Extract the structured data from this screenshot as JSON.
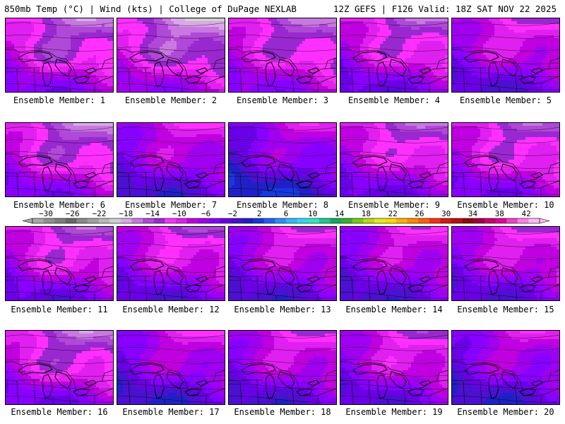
{
  "header": {
    "left_title": "850mb Temp (°C) | Wind (kts) | College of DuPage NEXLAB",
    "right_title": "12Z GEFS | F126 Valid: 18Z SAT NOV 22 2025"
  },
  "label_prefix": "Ensemble Member: ",
  "members": [
    {
      "number": 1,
      "label": "Ensemble Member: 1",
      "field": {
        "base": -3,
        "north": -9,
        "east": -2,
        "blob": -4
      }
    },
    {
      "number": 2,
      "label": "Ensemble Member: 2",
      "field": {
        "base": -4,
        "north": -10,
        "east": -3,
        "blob": -3
      }
    },
    {
      "number": 3,
      "label": "Ensemble Member: 3",
      "field": {
        "base": -3,
        "north": -7,
        "east": -4,
        "blob": -2
      }
    },
    {
      "number": 4,
      "label": "Ensemble Member: 4",
      "field": {
        "base": -1,
        "north": -9,
        "east": -3,
        "blob": -3
      }
    },
    {
      "number": 5,
      "label": "Ensemble Member: 5",
      "field": {
        "base": 0,
        "north": -7,
        "east": -2,
        "blob": -2
      }
    },
    {
      "number": 6,
      "label": "Ensemble Member: 6",
      "field": {
        "base": -2,
        "north": -9,
        "east": -4,
        "blob": -3
      }
    },
    {
      "number": 7,
      "label": "Ensemble Member: 7",
      "field": {
        "base": 1,
        "north": -6,
        "east": -2,
        "blob": -2
      }
    },
    {
      "number": 8,
      "label": "Ensemble Member: 8",
      "field": {
        "base": 4,
        "north": -7,
        "east": -3,
        "blob": -2
      }
    },
    {
      "number": 9,
      "label": "Ensemble Member: 9",
      "field": {
        "base": -1,
        "north": -9,
        "east": -3,
        "blob": -2
      }
    },
    {
      "number": 10,
      "label": "Ensemble Member: 10",
      "field": {
        "base": -2,
        "north": -7,
        "east": -3,
        "blob": -3
      }
    },
    {
      "number": 11,
      "label": "Ensemble Member: 11",
      "field": {
        "base": -1,
        "north": -9,
        "east": -2,
        "blob": -3
      }
    },
    {
      "number": 12,
      "label": "Ensemble Member: 12",
      "field": {
        "base": 0,
        "north": -8,
        "east": -3,
        "blob": -2
      }
    },
    {
      "number": 13,
      "label": "Ensemble Member: 13",
      "field": {
        "base": 1,
        "north": -7,
        "east": -3,
        "blob": -2
      }
    },
    {
      "number": 14,
      "label": "Ensemble Member: 14",
      "field": {
        "base": 1,
        "north": -5,
        "east": -4,
        "blob": -2
      }
    },
    {
      "number": 15,
      "label": "Ensemble Member: 15",
      "field": {
        "base": 0,
        "north": -6,
        "east": -3,
        "blob": -2
      }
    },
    {
      "number": 16,
      "label": "Ensemble Member: 16",
      "field": {
        "base": -2,
        "north": -10,
        "east": -2,
        "blob": -3
      }
    },
    {
      "number": 17,
      "label": "Ensemble Member: 17",
      "field": {
        "base": 2,
        "north": -6,
        "east": -3,
        "blob": -2
      }
    },
    {
      "number": 18,
      "label": "Ensemble Member: 18",
      "field": {
        "base": 1,
        "north": -7,
        "east": -3,
        "blob": -2
      }
    },
    {
      "number": 19,
      "label": "Ensemble Member: 19",
      "field": {
        "base": 0,
        "north": -6,
        "east": -4,
        "blob": -2
      }
    },
    {
      "number": 20,
      "label": "Ensemble Member: 20",
      "field": {
        "base": 2,
        "north": -5,
        "east": -3,
        "blob": -2
      }
    }
  ],
  "colorbar": {
    "labels": [
      "−30",
      "−26",
      "−22",
      "−18",
      "−14",
      "−10",
      "−6",
      "−2",
      "2",
      "6",
      "10",
      "14",
      "18",
      "22",
      "26",
      "30",
      "34",
      "38",
      "42"
    ],
    "min": -32,
    "max": 44,
    "step": 2,
    "colors": [
      "#a8a8a8",
      "#909090",
      "#7c7c7c",
      "#686868",
      "#8a8a8a",
      "#a0a0a0",
      "#b8b8b8",
      "#d0d0d0",
      "#d8a8e8",
      "#c878e0",
      "#b048d8",
      "#9a28d0",
      "#ff30ff",
      "#e020f0",
      "#c000e0",
      "#a000f0",
      "#8800ff",
      "#6a00e6",
      "#4c10d0",
      "#2020c8",
      "#1838e0",
      "#2060f8",
      "#2890ff",
      "#30b8ff",
      "#30d8f0",
      "#30e8c0",
      "#20c890",
      "#10a860",
      "#38b030",
      "#78c818",
      "#b8d818",
      "#e8e820",
      "#ffd800",
      "#ffb000",
      "#ff8800",
      "#ff6000",
      "#f83010",
      "#d81818",
      "#b81010",
      "#900808",
      "#a00040",
      "#c80070",
      "#e000a0",
      "#f040c8",
      "#ff80e8",
      "#ffb8f4"
    ]
  }
}
